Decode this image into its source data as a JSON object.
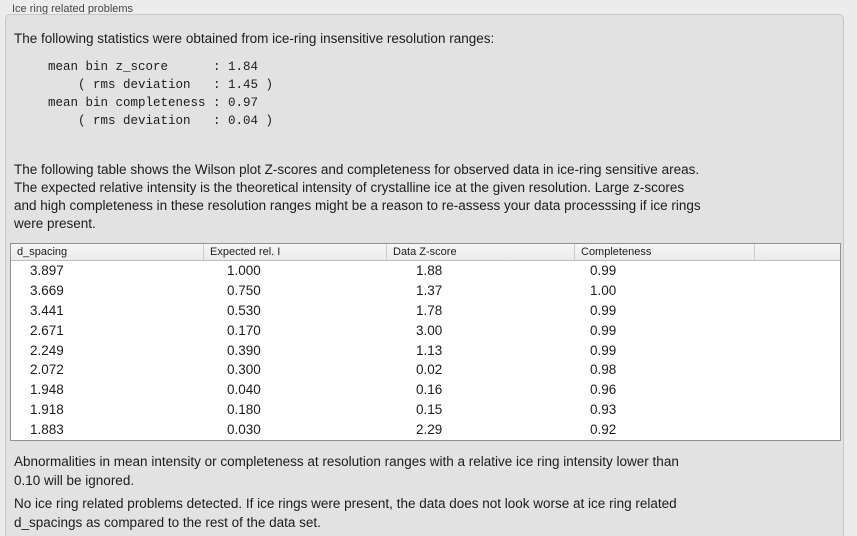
{
  "panel": {
    "title": "Ice ring related problems"
  },
  "intro": "The following statistics were obtained from ice-ring insensitive resolution ranges:",
  "stats_block": "mean bin z_score      : 1.84\n    ( rms deviation   : 1.45 )\nmean bin completeness : 0.97\n    ( rms deviation   : 0.04 )",
  "stats_values": {
    "mean_bin_z_score": "1.84",
    "z_score_rms_deviation": "1.45",
    "mean_bin_completeness": "0.97",
    "completeness_rms_deviation": "0.04"
  },
  "table_caption": "The following table shows the Wilson plot Z-scores and completeness for observed data in ice-ring sensitive areas.\nThe expected relative intensity is the theoretical intensity of crystalline ice at the given resolution. Large z-scores\nand high completeness in these resolution ranges might be a reason to re-assess your data processsing if ice rings\nwere present.",
  "table": {
    "headers": [
      "d_spacing",
      "Expected rel. I",
      "Data Z-score",
      "Completeness",
      ""
    ],
    "rows": [
      [
        "3.897",
        "1.000",
        "1.88",
        "0.99"
      ],
      [
        "3.669",
        "0.750",
        "1.37",
        "1.00"
      ],
      [
        "3.441",
        "0.530",
        "1.78",
        "0.99"
      ],
      [
        "2.671",
        "0.170",
        "3.00",
        "0.99"
      ],
      [
        "2.249",
        "0.390",
        "1.13",
        "0.99"
      ],
      [
        "2.072",
        "0.300",
        "0.02",
        "0.98"
      ],
      [
        "1.948",
        "0.040",
        "0.16",
        "0.96"
      ],
      [
        "1.918",
        "0.180",
        "0.15",
        "0.93"
      ],
      [
        "1.883",
        "0.030",
        "2.29",
        "0.92"
      ]
    ]
  },
  "ignore_note": "Abnormalities in mean intensity or completeness at resolution ranges with a relative ice ring intensity lower than\n0.10 will be ignored.",
  "conclusion": "No ice ring related problems detected. If ice rings were present, the data does not look worse at ice ring related\nd_spacings as compared to the rest of the data set.",
  "colors": {
    "window_bg": "#ececec",
    "panel_bg": "#e2e2e2",
    "panel_border": "#c8c8c8",
    "table_border": "#919191",
    "header_sep": "#cdcdcd",
    "text": "#1c1c1c",
    "title_text": "#474747"
  }
}
